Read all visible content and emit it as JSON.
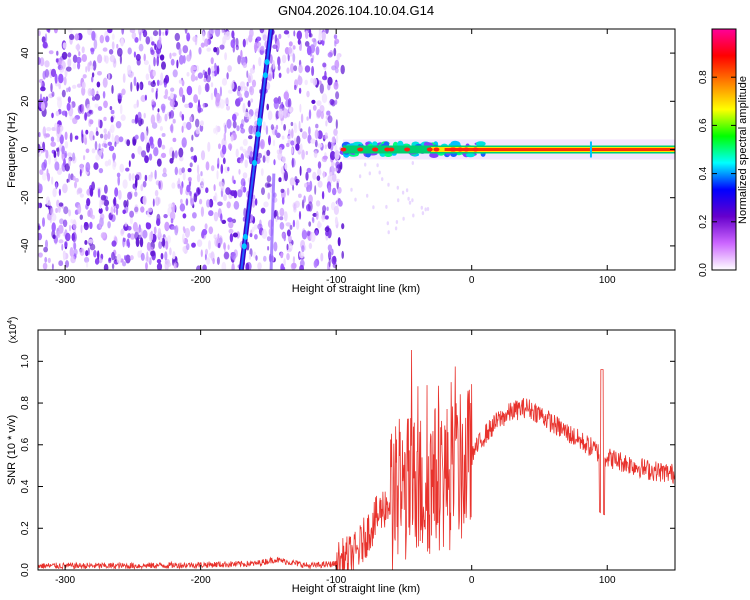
{
  "title": "GN04.2026.104.10.04.G14",
  "chart_data": [
    {
      "type": "heatmap",
      "xlabel": "Height of straight line (km)",
      "ylabel": "Frequency (Hz)",
      "xlim": [
        -320,
        150
      ],
      "ylim": [
        -50,
        50
      ],
      "xticks": [
        -300,
        -200,
        -100,
        0,
        100
      ],
      "yticks": [
        -40,
        -20,
        0,
        20,
        40
      ],
      "colorbar": {
        "label": "Normalized spectral amplitude",
        "range": [
          0,
          1
        ],
        "ticks": [
          "0.0",
          "0.2",
          "0.4",
          "0.6",
          "0.8"
        ],
        "colors": [
          "#ffffff",
          "#cc66ff",
          "#6600cc",
          "#0000ff",
          "#00ffff",
          "#00ff00",
          "#ffff00",
          "#ff8000",
          "#ff0000",
          "#ff0099"
        ]
      },
      "features": {
        "noise_region_x": [
          -320,
          -95
        ],
        "diagonal_line": {
          "x": [
            -170,
            -148
          ],
          "y": [
            -50,
            50
          ]
        },
        "carrier_line": {
          "x": [
            -95,
            150
          ],
          "y": 0
        }
      }
    },
    {
      "type": "line",
      "xlabel": "Height of straight line (km)",
      "ylabel": "SNR (10 * v/v)",
      "yscale_label": "(x10^4)",
      "xlim": [
        -320,
        150
      ],
      "ylim": [
        0,
        1.15
      ],
      "xticks": [
        -300,
        -200,
        -100,
        0,
        100
      ],
      "yticks": [
        "0.0",
        "0.2",
        "0.4",
        "0.6",
        "0.8",
        "1.0"
      ],
      "color": "#e8322c",
      "x": [
        -320,
        -250,
        -200,
        -160,
        -145,
        -120,
        -100,
        -85,
        -75,
        -65,
        -55,
        -45,
        -35,
        -25,
        -15,
        -5,
        0,
        10,
        20,
        30,
        40,
        50,
        60,
        70,
        80,
        90,
        96,
        100,
        110,
        120,
        130,
        140,
        150
      ],
      "y": [
        0.02,
        0.02,
        0.025,
        0.03,
        0.05,
        0.02,
        0.03,
        0.08,
        0.2,
        0.3,
        0.35,
        0.4,
        0.4,
        0.45,
        0.45,
        0.5,
        0.55,
        0.65,
        0.72,
        0.76,
        0.78,
        0.75,
        0.7,
        0.66,
        0.62,
        0.58,
        0.55,
        0.54,
        0.52,
        0.5,
        0.48,
        0.47,
        0.46
      ]
    }
  ]
}
